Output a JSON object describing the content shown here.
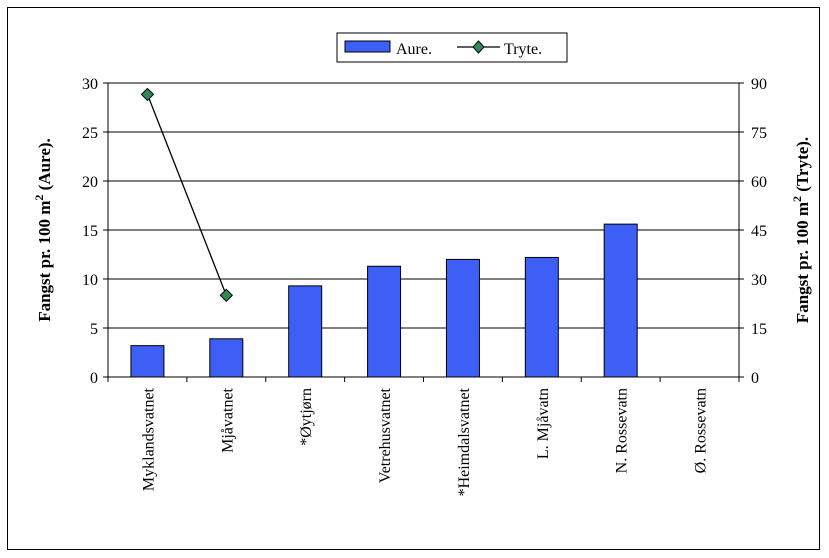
{
  "chart_data": {
    "type": "bar",
    "categories": [
      "Myklandsvatnet",
      "Mjåvatnet",
      "*Øytjørn",
      "Vetrehusvatnet",
      "*Heimdalsvatnet",
      "L. Mjåvatn",
      "N. Rossevatn",
      "Ø. Rossevatn"
    ],
    "series": [
      {
        "name": "Aure.",
        "type": "bar",
        "axis": "left",
        "color": "#3e5ff6",
        "values": [
          3.2,
          3.9,
          9.3,
          11.3,
          12.0,
          12.2,
          15.6,
          null
        ]
      },
      {
        "name": "Tryte.",
        "type": "line",
        "axis": "right",
        "color": "#2e8b57",
        "values": [
          86.5,
          25.0,
          null,
          null,
          null,
          null,
          null,
          null
        ]
      }
    ],
    "ylabel_left": {
      "prefix": "Fangst pr. 100 m",
      "sup": "2",
      "suffix": " (Aure)."
    },
    "ylabel_right": {
      "prefix": "Fangst pr. 100 m",
      "sup": "2",
      "suffix": " (Tryte)."
    },
    "ylim_left": [
      0,
      30
    ],
    "yticks_left": [
      0,
      5,
      10,
      15,
      20,
      25,
      30
    ],
    "ylim_right": [
      0,
      90
    ],
    "yticks_right": [
      0,
      15,
      30,
      45,
      60,
      75,
      90
    ],
    "grid": true,
    "legend_position": "top-center"
  }
}
